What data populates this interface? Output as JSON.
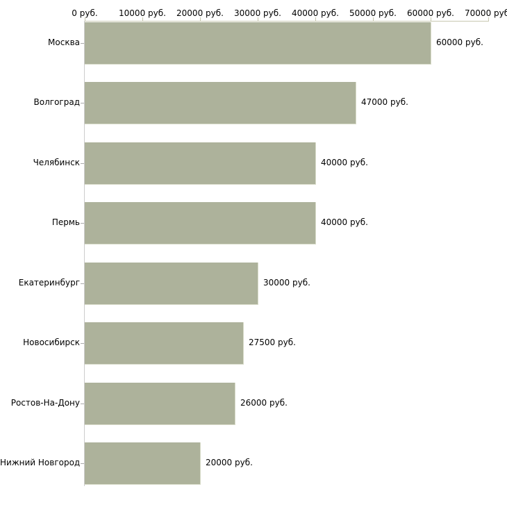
{
  "chart_data": {
    "type": "bar",
    "orientation": "horizontal",
    "categories": [
      "Москва",
      "Волгоград",
      "Челябинск",
      "Пермь",
      "Екатеринбург",
      "Новосибирск",
      "Ростов-На-Дону",
      "Нижний Новгород"
    ],
    "values": [
      60000,
      47000,
      40000,
      40000,
      30000,
      27500,
      26000,
      20000
    ],
    "value_labels": [
      "60000 руб.",
      "47000 руб.",
      "40000 руб.",
      "40000 руб.",
      "30000 руб.",
      "27500 руб.",
      "26000 руб.",
      "20000 руб."
    ],
    "x_tick_labels": [
      "0 руб.",
      "10000 руб.",
      "20000 руб.",
      "30000 руб.",
      "40000 руб.",
      "50000 руб.",
      "60000 руб.",
      "70000 руб."
    ],
    "x_tick_values": [
      0,
      10000,
      20000,
      30000,
      40000,
      50000,
      60000,
      70000
    ],
    "xlim": [
      0,
      70000
    ],
    "unit": "руб.",
    "title": "",
    "xlabel": "",
    "ylabel": "",
    "grid": false,
    "legend": false,
    "bar_color": "#adb29b",
    "bar_edge_color": "#d8dbc9",
    "axis_line_color": "#c8c8b0",
    "y_tick_color": "#aaaaaa",
    "text_color": "#000000"
  }
}
